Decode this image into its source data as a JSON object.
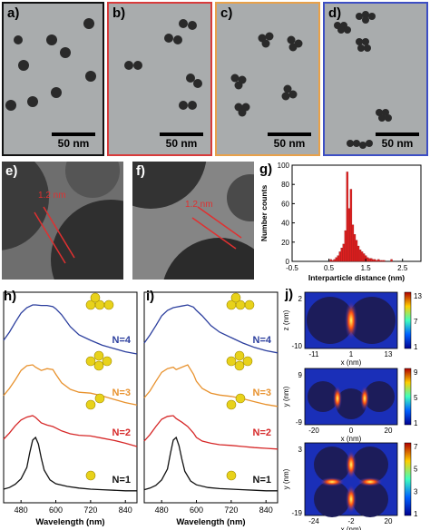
{
  "figure": {
    "panels": {
      "a": {
        "label": "a)",
        "scale": "50 nm",
        "border": "#111111"
      },
      "b": {
        "label": "b)",
        "scale": "50 nm",
        "border": "#d83b3b"
      },
      "c": {
        "label": "c)",
        "scale": "50 nm",
        "border": "#e8a14a"
      },
      "d": {
        "label": "d)",
        "scale": "50 nm",
        "border": "#3d4fc4"
      },
      "e": {
        "label": "e)",
        "gap": "1.2 nm"
      },
      "f": {
        "label": "f)",
        "gap": "1.2 nm"
      },
      "g": {
        "label": "g)"
      },
      "h": {
        "label": "h)"
      },
      "i": {
        "label": "i)"
      },
      "j": {
        "label": "j)"
      }
    }
  },
  "chart_data": [
    {
      "type": "bar",
      "panel": "g",
      "xlabel": "Interparticle distance (nm)",
      "ylabel": "Number counts",
      "xlim": [
        -0.5,
        3.0
      ],
      "ylim": [
        0,
        100
      ],
      "xticks": [
        "-0.5",
        "0.5",
        "1.5",
        "2.5"
      ],
      "yticks": [
        "0",
        "20",
        "40",
        "60",
        "80",
        "100"
      ],
      "bin_width": 0.05,
      "x": [
        0.55,
        0.6,
        0.65,
        0.7,
        0.75,
        0.8,
        0.85,
        0.9,
        0.95,
        1.0,
        1.05,
        1.1,
        1.15,
        1.2,
        1.25,
        1.3,
        1.35,
        1.4,
        1.45,
        1.5,
        1.55,
        1.6,
        1.65,
        1.7,
        1.75,
        1.8,
        1.85,
        1.9,
        1.95,
        2.0,
        2.2
      ],
      "values": [
        2,
        1,
        2,
        4,
        6,
        10,
        14,
        18,
        32,
        93,
        55,
        75,
        38,
        28,
        22,
        16,
        12,
        10,
        8,
        6,
        4,
        3,
        3,
        2,
        2,
        1,
        2,
        1,
        1,
        1,
        2
      ],
      "color": "#e02020"
    },
    {
      "type": "line",
      "panel": "h",
      "xlabel": "Wavelength (nm)",
      "ylabel": "",
      "xlim": [
        420,
        880
      ],
      "xticks": [
        "480",
        "600",
        "720",
        "840"
      ],
      "series": [
        {
          "name": "N=4",
          "color": "#2c3f9e",
          "x": [
            420,
            440,
            460,
            480,
            500,
            520,
            530,
            550,
            570,
            590,
            600,
            620,
            650,
            680,
            720,
            760,
            800,
            840,
            880
          ],
          "y": [
            0.35,
            0.5,
            0.68,
            0.85,
            0.95,
            1.0,
            1.0,
            0.99,
            0.99,
            0.97,
            0.93,
            0.82,
            0.6,
            0.45,
            0.35,
            0.26,
            0.2,
            0.14,
            0.1
          ]
        },
        {
          "name": "N=3",
          "color": "#e8922e",
          "x": [
            420,
            440,
            460,
            480,
            500,
            520,
            530,
            550,
            570,
            590,
            600,
            620,
            650,
            680,
            720,
            760,
            800,
            840,
            880
          ],
          "y": [
            0.35,
            0.5,
            0.68,
            0.88,
            0.98,
            1.0,
            0.95,
            0.88,
            0.92,
            0.9,
            0.8,
            0.62,
            0.48,
            0.42,
            0.4,
            0.34,
            0.27,
            0.2,
            0.15
          ]
        },
        {
          "name": "N=2",
          "color": "#d62828",
          "x": [
            420,
            440,
            460,
            480,
            500,
            520,
            530,
            550,
            570,
            590,
            600,
            620,
            650,
            680,
            720,
            760,
            800,
            840,
            880
          ],
          "y": [
            0.35,
            0.52,
            0.72,
            0.88,
            0.96,
            1.0,
            0.95,
            0.8,
            0.74,
            0.7,
            0.66,
            0.58,
            0.5,
            0.46,
            0.44,
            0.38,
            0.32,
            0.24,
            0.15
          ]
        },
        {
          "name": "N=1",
          "color": "#111111",
          "x": [
            420,
            440,
            460,
            480,
            500,
            510,
            520,
            530,
            540,
            550,
            560,
            580,
            600,
            640,
            680,
            720,
            760,
            800,
            840,
            880
          ],
          "y": [
            0.05,
            0.08,
            0.14,
            0.24,
            0.45,
            0.72,
            0.95,
            1.0,
            0.88,
            0.62,
            0.4,
            0.22,
            0.15,
            0.1,
            0.07,
            0.05,
            0.04,
            0.03,
            0.02,
            0.02
          ]
        }
      ]
    },
    {
      "type": "line",
      "panel": "i",
      "xlabel": "Wavelength (nm)",
      "ylabel": "",
      "xlim": [
        420,
        880
      ],
      "xticks": [
        "480",
        "600",
        "720",
        "840"
      ],
      "series": [
        {
          "name": "N=4",
          "color": "#2c3f9e",
          "x": [
            420,
            440,
            460,
            480,
            500,
            520,
            530,
            550,
            570,
            590,
            600,
            620,
            650,
            680,
            720,
            760,
            800,
            840,
            880
          ],
          "y": [
            0.3,
            0.45,
            0.62,
            0.8,
            0.9,
            0.95,
            0.96,
            0.98,
            1.0,
            0.96,
            0.9,
            0.8,
            0.62,
            0.5,
            0.4,
            0.3,
            0.22,
            0.16,
            0.12
          ]
        },
        {
          "name": "N=3",
          "color": "#e8922e",
          "x": [
            420,
            440,
            460,
            480,
            500,
            520,
            530,
            550,
            570,
            590,
            600,
            620,
            650,
            680,
            720,
            760,
            800,
            840,
            880
          ],
          "y": [
            0.3,
            0.45,
            0.65,
            0.84,
            0.92,
            0.95,
            0.9,
            0.95,
            1.0,
            0.8,
            0.65,
            0.5,
            0.4,
            0.36,
            0.33,
            0.28,
            0.22,
            0.16,
            0.12
          ]
        },
        {
          "name": "N=2",
          "color": "#d62828",
          "x": [
            420,
            440,
            460,
            480,
            500,
            520,
            530,
            550,
            570,
            590,
            600,
            620,
            650,
            680,
            720,
            760,
            800,
            840,
            880
          ],
          "y": [
            0.3,
            0.48,
            0.7,
            0.9,
            0.98,
            1.0,
            0.92,
            0.82,
            0.7,
            0.52,
            0.4,
            0.3,
            0.24,
            0.2,
            0.18,
            0.15,
            0.12,
            0.1,
            0.08
          ]
        },
        {
          "name": "N=1",
          "color": "#111111",
          "x": [
            420,
            440,
            460,
            480,
            500,
            510,
            520,
            530,
            540,
            550,
            560,
            580,
            600,
            640,
            680,
            720,
            760,
            800,
            840,
            880
          ],
          "y": [
            0.04,
            0.07,
            0.12,
            0.22,
            0.42,
            0.7,
            0.95,
            1.0,
            0.85,
            0.6,
            0.38,
            0.2,
            0.13,
            0.08,
            0.06,
            0.05,
            0.04,
            0.03,
            0.02,
            0.02
          ]
        }
      ]
    },
    {
      "type": "heatmap",
      "panel": "j",
      "maps": [
        {
          "ylabel": "z (nm)",
          "xlabel": "x (nm)",
          "xticks": [
            "-11",
            "1",
            "13"
          ],
          "yticks": [
            "2",
            "-10"
          ],
          "colorbar": [
            "13",
            "7",
            "1"
          ]
        },
        {
          "ylabel": "y (nm)",
          "xlabel": "x (nm)",
          "xticks": [
            "-20",
            "0",
            "20"
          ],
          "yticks": [
            "9",
            "-9"
          ],
          "colorbar": [
            "9",
            "5",
            "1"
          ]
        },
        {
          "ylabel": "y (nm)",
          "xlabel": "x (nm)",
          "xticks": [
            "-24",
            "-2",
            "20"
          ],
          "yticks": [
            "3",
            "-19"
          ],
          "colorbar": [
            "7",
            "5",
            "3",
            "1"
          ]
        }
      ]
    }
  ]
}
